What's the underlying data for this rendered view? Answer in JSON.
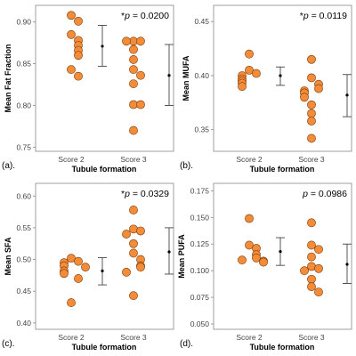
{
  "colors": {
    "point_fill": "#F28C38",
    "point_stroke": "#7a3a0a",
    "axis": "#888888",
    "errorbar": "#444444",
    "mean": "#000000"
  },
  "chart_data": [
    {
      "type": "scatter",
      "panel_label": "(a).",
      "ylabel": "Mean Fat Fraction",
      "xlabel": "Tubule formation",
      "categories": [
        "Score 2",
        "Score 3"
      ],
      "yticks": [
        "0.75",
        "0.80",
        "0.85",
        "0.90"
      ],
      "ytick_values": [
        0.75,
        0.8,
        0.85,
        0.9
      ],
      "ylim": [
        0.745,
        0.92
      ],
      "p_star": "*",
      "p_label": "p",
      "p_value": " = 0.0200",
      "groups": [
        {
          "name": "Score 2",
          "points": [
            0.908,
            0.901,
            0.885,
            0.878,
            0.872,
            0.866,
            0.86,
            0.843,
            0.835
          ],
          "mean": 0.871,
          "err": [
            0.847,
            0.896
          ]
        },
        {
          "name": "Score 3",
          "points": [
            0.877,
            0.877,
            0.877,
            0.867,
            0.855,
            0.843,
            0.836,
            0.826,
            0.801,
            0.801,
            0.77
          ],
          "mean": 0.836,
          "err": [
            0.8,
            0.873
          ]
        }
      ]
    },
    {
      "type": "scatter",
      "panel_label": "(b).",
      "ylabel": "Mean MUFA",
      "xlabel": "Tubule formation",
      "categories": [
        "Score 2",
        "Score 3"
      ],
      "yticks": [
        "0.35",
        "0.40",
        "0.45"
      ],
      "ytick_values": [
        0.35,
        0.4,
        0.45
      ],
      "ylim": [
        0.33,
        0.465
      ],
      "p_star": "*",
      "p_label": "p",
      "p_value": " = 0.0119",
      "groups": [
        {
          "name": "Score 2",
          "points": [
            0.42,
            0.405,
            0.402,
            0.4,
            0.397,
            0.395,
            0.393,
            0.39
          ],
          "mean": 0.4,
          "err": [
            0.391,
            0.408
          ]
        },
        {
          "name": "Score 3",
          "points": [
            0.415,
            0.398,
            0.392,
            0.388,
            0.386,
            0.384,
            0.38,
            0.373,
            0.365,
            0.358,
            0.342
          ],
          "mean": 0.382,
          "err": [
            0.362,
            0.401
          ]
        }
      ]
    },
    {
      "type": "scatter",
      "panel_label": "(c).",
      "ylabel": "Mean SFA",
      "xlabel": "Tubule formation",
      "categories": [
        "Score 2",
        "Score 3"
      ],
      "yticks": [
        "0.40",
        "0.45",
        "0.50",
        "0.55",
        "0.60"
      ],
      "ytick_values": [
        0.4,
        0.45,
        0.5,
        0.55,
        0.6
      ],
      "ylim": [
        0.39,
        0.62
      ],
      "p_star": "*",
      "p_label": "p",
      "p_value": " = 0.0329",
      "groups": [
        {
          "name": "Score 2",
          "points": [
            0.502,
            0.497,
            0.495,
            0.49,
            0.488,
            0.482,
            0.478,
            0.47,
            0.432
          ],
          "mean": 0.482,
          "err": [
            0.46,
            0.503
          ]
        },
        {
          "name": "Score 3",
          "points": [
            0.578,
            0.548,
            0.545,
            0.54,
            0.525,
            0.51,
            0.5,
            0.49,
            0.488,
            0.48,
            0.443
          ],
          "mean": 0.512,
          "err": [
            0.477,
            0.55
          ]
        }
      ]
    },
    {
      "type": "scatter",
      "panel_label": "(d).",
      "ylabel": "Mean PUFA",
      "xlabel": "Tubule formation",
      "categories": [
        "Score 2",
        "Score 3"
      ],
      "yticks": [
        "0.050",
        "0.075",
        "0.100",
        "0.125",
        "0.150",
        "0.175"
      ],
      "ytick_values": [
        0.05,
        0.075,
        0.1,
        0.125,
        0.15,
        0.175
      ],
      "ylim": [
        0.045,
        0.182
      ],
      "p_star": "",
      "p_label": "p",
      "p_value": " = 0.0986",
      "groups": [
        {
          "name": "Score 2",
          "points": [
            0.149,
            0.124,
            0.121,
            0.115,
            0.112,
            0.11,
            0.109,
            0.108
          ],
          "mean": 0.118,
          "err": [
            0.105,
            0.131
          ]
        },
        {
          "name": "Score 3",
          "points": [
            0.145,
            0.124,
            0.12,
            0.113,
            0.104,
            0.102,
            0.1,
            0.092,
            0.085,
            0.08
          ],
          "mean": 0.106,
          "err": [
            0.088,
            0.125
          ]
        }
      ]
    }
  ]
}
